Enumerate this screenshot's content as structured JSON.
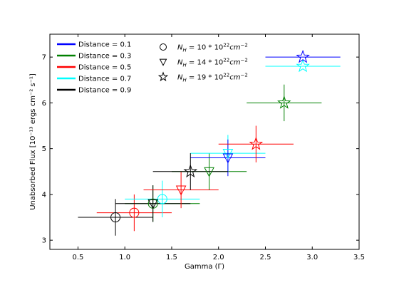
{
  "chart_data": {
    "type": "scatter",
    "xlabel": "Gamma (Γ)",
    "ylabel": "Unabsorbed Flux [10⁻¹³ ergs cm⁻² s⁻¹]",
    "xlim": [
      0.2,
      3.5
    ],
    "ylim": [
      2.8,
      7.5
    ],
    "xticks": [
      "0.5",
      "1.0",
      "1.5",
      "2.0",
      "2.5",
      "3.0",
      "3.5"
    ],
    "xtick_values": [
      0.5,
      1.0,
      1.5,
      2.0,
      2.5,
      3.0,
      3.5
    ],
    "yticks": [
      "3",
      "4",
      "5",
      "6",
      "7"
    ],
    "ytick_values": [
      3,
      4,
      5,
      6,
      7
    ],
    "grid": false,
    "legend_position": "top-left",
    "distance_legend": [
      {
        "label": "Distance = 0.1",
        "color": "#0000ff"
      },
      {
        "label": "Distance = 0.3",
        "color": "#008000"
      },
      {
        "label": "Distance = 0.5",
        "color": "#ff0000"
      },
      {
        "label": "Distance = 0.7",
        "color": "#00ffff"
      },
      {
        "label": "Distance = 0.9",
        "color": "#000000"
      }
    ],
    "marker_legend": [
      {
        "marker": "circle",
        "label": "N_H = 10*10^22 cm^-2",
        "text_main": "N",
        "text_sub": "H",
        "text_rest": " = 10 * 10",
        "text_sup1": "22",
        "text_unit": "cm",
        "text_sup2": "−2"
      },
      {
        "marker": "triangle-down",
        "label": "N_H = 14*10^22 cm^-2",
        "text_main": "N",
        "text_sub": "H",
        "text_rest": " = 14 * 10",
        "text_sup1": "22",
        "text_unit": "cm",
        "text_sup2": "−2"
      },
      {
        "marker": "star",
        "label": "N_H = 19*10^22 cm^-2",
        "text_main": "N",
        "text_sub": "H",
        "text_rest": " = 19 * 10",
        "text_sup1": "22",
        "text_unit": "cm",
        "text_sup2": "−2"
      }
    ],
    "points": [
      {
        "distance": 0.9,
        "nh": 10,
        "marker": "circle",
        "color": "#000000",
        "x": 0.9,
        "y": 3.5,
        "xerr": [
          0.5,
          1.3
        ],
        "yerr": [
          3.1,
          3.9
        ]
      },
      {
        "distance": 0.5,
        "nh": 10,
        "marker": "circle",
        "color": "#ff0000",
        "x": 1.1,
        "y": 3.6,
        "xerr": [
          0.7,
          1.5
        ],
        "yerr": [
          3.2,
          4.0
        ]
      },
      {
        "distance": 0.3,
        "nh": 10,
        "marker": "circle",
        "color": "#008000",
        "x": 1.3,
        "y": 3.8,
        "xerr": [
          1.0,
          1.8
        ],
        "yerr": [
          3.4,
          4.2
        ]
      },
      {
        "distance": 0.7,
        "nh": 10,
        "marker": "circle",
        "color": "#00ffff",
        "x": 1.4,
        "y": 3.9,
        "xerr": [
          1.0,
          1.8
        ],
        "yerr": [
          3.5,
          4.3
        ]
      },
      {
        "distance": 0.9,
        "nh": 14,
        "marker": "triangle-down",
        "color": "#000000",
        "x": 1.3,
        "y": 3.8,
        "xerr": [
          0.9,
          1.7
        ],
        "yerr": [
          3.4,
          4.2
        ]
      },
      {
        "distance": 0.5,
        "nh": 14,
        "marker": "triangle-down",
        "color": "#ff0000",
        "x": 1.6,
        "y": 4.1,
        "xerr": [
          1.2,
          2.0
        ],
        "yerr": [
          3.7,
          4.5
        ]
      },
      {
        "distance": 0.3,
        "nh": 14,
        "marker": "triangle-down",
        "color": "#008000",
        "x": 1.9,
        "y": 4.5,
        "xerr": [
          1.5,
          2.3
        ],
        "yerr": [
          4.1,
          4.9
        ]
      },
      {
        "distance": 0.7,
        "nh": 14,
        "marker": "triangle-down",
        "color": "#00ffff",
        "x": 2.1,
        "y": 4.9,
        "xerr": [
          1.7,
          2.5
        ],
        "yerr": [
          4.5,
          5.3
        ]
      },
      {
        "distance": 0.1,
        "nh": 14,
        "marker": "triangle-down",
        "color": "#0000ff",
        "x": 2.1,
        "y": 4.8,
        "xerr": [
          1.7,
          2.5
        ],
        "yerr": [
          4.4,
          5.2
        ]
      },
      {
        "distance": 0.9,
        "nh": 19,
        "marker": "star",
        "color": "#000000",
        "x": 1.7,
        "y": 4.5,
        "xerr": [
          1.3,
          2.1
        ],
        "yerr": [
          4.1,
          4.9
        ]
      },
      {
        "distance": 0.5,
        "nh": 19,
        "marker": "star",
        "color": "#ff0000",
        "x": 2.4,
        "y": 5.1,
        "xerr": [
          2.0,
          2.8
        ],
        "yerr": [
          4.7,
          5.5
        ]
      },
      {
        "distance": 0.3,
        "nh": 19,
        "marker": "star",
        "color": "#008000",
        "x": 2.7,
        "y": 6.0,
        "xerr": [
          2.3,
          3.1
        ],
        "yerr": [
          5.6,
          6.4
        ]
      },
      {
        "distance": 0.7,
        "nh": 19,
        "marker": "star",
        "color": "#00ffff",
        "x": 2.9,
        "y": 6.8,
        "xerr": [
          2.5,
          3.3
        ],
        "yerr": [
          6.8,
          6.8
        ]
      },
      {
        "distance": 0.1,
        "nh": 19,
        "marker": "star",
        "color": "#0000ff",
        "x": 2.9,
        "y": 7.0,
        "xerr": [
          2.5,
          3.3
        ],
        "yerr": [
          7.0,
          7.0
        ]
      }
    ]
  }
}
